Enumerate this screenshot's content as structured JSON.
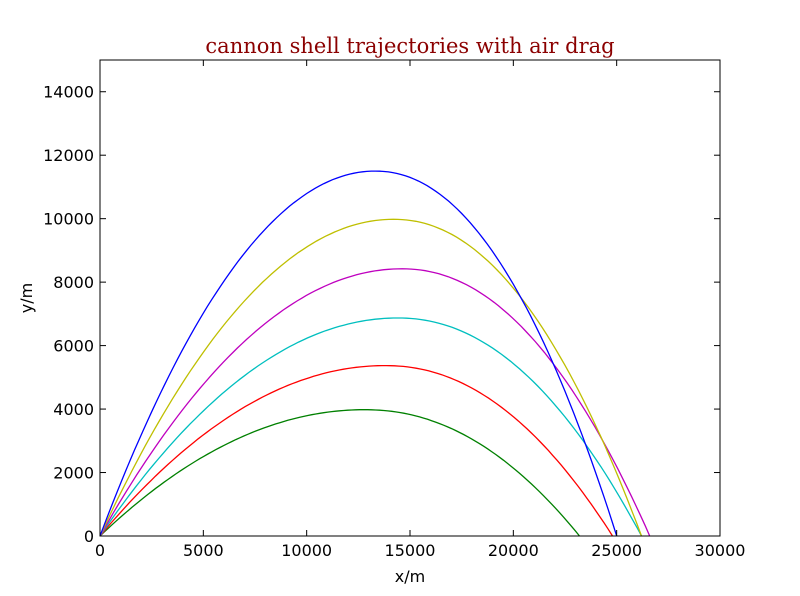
{
  "chart_data": {
    "type": "line",
    "title": "cannon shell trajectories with air drag",
    "title_color": "#8b0000",
    "xlabel": "x/m",
    "ylabel": "y/m",
    "xlim": [
      0,
      30000
    ],
    "ylim": [
      0,
      15000
    ],
    "xticks": [
      0,
      5000,
      10000,
      15000,
      20000,
      25000,
      30000
    ],
    "yticks": [
      0,
      2000,
      4000,
      6000,
      8000,
      10000,
      12000,
      14000
    ],
    "xtick_labels": [
      "0",
      "5000",
      "10000",
      "15000",
      "20000",
      "25000",
      "30000"
    ],
    "ytick_labels": [
      "0",
      "2000",
      "4000",
      "6000",
      "8000",
      "10000",
      "12000",
      "14000"
    ],
    "grid": false,
    "legend": "none",
    "series": [
      {
        "color": "#008000",
        "range": 23200,
        "peak": [
          12800,
          3980
        ],
        "shape": 1.0
      },
      {
        "color": "#ff0000",
        "range": 24800,
        "peak": [
          13800,
          5370
        ],
        "shape": 1.0
      },
      {
        "color": "#00bfbf",
        "range": 26200,
        "peak": [
          14400,
          6870
        ],
        "shape": 1.0
      },
      {
        "color": "#bf00bf",
        "range": 26600,
        "peak": [
          14600,
          8420
        ],
        "shape": 1.0
      },
      {
        "color": "#bfbf00",
        "range": 26200,
        "peak": [
          14200,
          9980
        ],
        "shape": 1.0
      },
      {
        "color": "#0000ff",
        "range": 25000,
        "peak": [
          13300,
          11500
        ],
        "shape": 1.0
      }
    ]
  }
}
